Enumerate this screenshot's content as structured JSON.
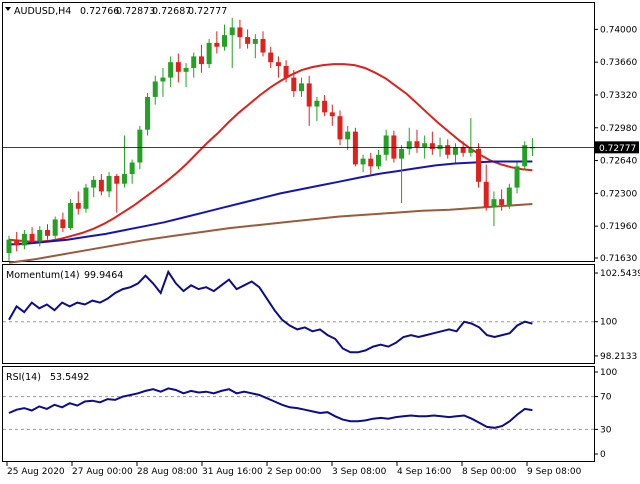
{
  "header": {
    "arrow_icon": "triangle-down-icon",
    "title": "AUDUSD,H4",
    "open": "0.72766",
    "high": "0.72873",
    "low": "0.72687",
    "close": "0.72777"
  },
  "colors": {
    "bull": "#23a123",
    "bear": "#e0201c",
    "sma_fast": "#e0201c",
    "sma_mid": "#1515b5",
    "sma_slow": "#9b5a3a",
    "indicator": "#0d0d8a",
    "price_tag_bg": "#000000"
  },
  "chart_data": [
    {
      "type": "candlestick",
      "title": "AUDUSD,H4",
      "ylim": [
        0.7163,
        0.7418
      ],
      "y_ticks": [
        "0.74000",
        "0.73660",
        "0.73320",
        "0.72980",
        "0.72640",
        "0.72300",
        "0.71960",
        "0.71630"
      ],
      "current_price": "0.72777",
      "x_ticks": [
        "25 Aug 2020",
        "27 Aug 00:00",
        "28 Aug 08:00",
        "31 Aug 16:00",
        "2 Sep 00:00",
        "3 Sep 08:00",
        "4 Sep 16:00",
        "8 Sep 00:00",
        "9 Sep 08:00"
      ],
      "candles": [
        [
          0.7168,
          0.7186,
          0.716,
          0.7182
        ],
        [
          0.7182,
          0.719,
          0.717,
          0.7176
        ],
        [
          0.7176,
          0.7192,
          0.7172,
          0.7188
        ],
        [
          0.7188,
          0.7195,
          0.7178,
          0.718
        ],
        [
          0.718,
          0.7196,
          0.7175,
          0.7192
        ],
        [
          0.7192,
          0.7198,
          0.7182,
          0.7186
        ],
        [
          0.7186,
          0.7206,
          0.7183,
          0.7203
        ],
        [
          0.7203,
          0.721,
          0.719,
          0.7194
        ],
        [
          0.7194,
          0.7224,
          0.7192,
          0.722
        ],
        [
          0.722,
          0.7232,
          0.7208,
          0.7214
        ],
        [
          0.7214,
          0.724,
          0.721,
          0.7236
        ],
        [
          0.7236,
          0.7248,
          0.7226,
          0.7244
        ],
        [
          0.7244,
          0.725,
          0.7228,
          0.7232
        ],
        [
          0.7232,
          0.7252,
          0.7226,
          0.7248
        ],
        [
          0.7248,
          0.725,
          0.721,
          0.724
        ],
        [
          0.724,
          0.729,
          0.7236,
          0.725
        ],
        [
          0.725,
          0.7265,
          0.724,
          0.7262
        ],
        [
          0.7262,
          0.73,
          0.7255,
          0.7296
        ],
        [
          0.7296,
          0.7334,
          0.729,
          0.733
        ],
        [
          0.733,
          0.7352,
          0.7322,
          0.7346
        ],
        [
          0.7346,
          0.736,
          0.733,
          0.735
        ],
        [
          0.735,
          0.7372,
          0.734,
          0.7366
        ],
        [
          0.7366,
          0.7375,
          0.7345,
          0.7356
        ],
        [
          0.7356,
          0.7365,
          0.734,
          0.736
        ],
        [
          0.736,
          0.7376,
          0.735,
          0.7372
        ],
        [
          0.7372,
          0.7384,
          0.7355,
          0.7364
        ],
        [
          0.7364,
          0.739,
          0.736,
          0.7386
        ],
        [
          0.7386,
          0.7398,
          0.7375,
          0.7382
        ],
        [
          0.7382,
          0.7405,
          0.7378,
          0.7394
        ],
        [
          0.7394,
          0.7412,
          0.736,
          0.7402
        ],
        [
          0.7402,
          0.741,
          0.738,
          0.7392
        ],
        [
          0.7392,
          0.74,
          0.738,
          0.7385
        ],
        [
          0.7385,
          0.7395,
          0.737,
          0.739
        ],
        [
          0.739,
          0.7398,
          0.7372,
          0.7376
        ],
        [
          0.7376,
          0.7382,
          0.736,
          0.7366
        ],
        [
          0.7366,
          0.7372,
          0.735,
          0.7362
        ],
        [
          0.7362,
          0.7368,
          0.7345,
          0.735
        ],
        [
          0.735,
          0.7358,
          0.733,
          0.7336
        ],
        [
          0.7336,
          0.735,
          0.733,
          0.7344
        ],
        [
          0.7344,
          0.7352,
          0.73,
          0.732
        ],
        [
          0.732,
          0.733,
          0.7305,
          0.7326
        ],
        [
          0.7326,
          0.7332,
          0.731,
          0.7314
        ],
        [
          0.7314,
          0.7322,
          0.73,
          0.731
        ],
        [
          0.731,
          0.7316,
          0.728,
          0.7286
        ],
        [
          0.7286,
          0.73,
          0.7275,
          0.7294
        ],
        [
          0.7294,
          0.7298,
          0.7258,
          0.726
        ],
        [
          0.726,
          0.727,
          0.7252,
          0.7266
        ],
        [
          0.7266,
          0.7272,
          0.725,
          0.7258
        ],
        [
          0.7258,
          0.7275,
          0.7255,
          0.727
        ],
        [
          0.727,
          0.7296,
          0.7264,
          0.729
        ],
        [
          0.729,
          0.7295,
          0.7262,
          0.7266
        ],
        [
          0.7266,
          0.728,
          0.722,
          0.7276
        ],
        [
          0.7276,
          0.7298,
          0.727,
          0.7284
        ],
        [
          0.7284,
          0.7296,
          0.7272,
          0.7278
        ],
        [
          0.7278,
          0.729,
          0.7266,
          0.7282
        ],
        [
          0.7282,
          0.7294,
          0.727,
          0.7276
        ],
        [
          0.7276,
          0.7288,
          0.7268,
          0.728
        ],
        [
          0.728,
          0.7286,
          0.7266,
          0.727
        ],
        [
          0.727,
          0.7282,
          0.7262,
          0.7278
        ],
        [
          0.7278,
          0.7284,
          0.7268,
          0.7272
        ],
        [
          0.7272,
          0.7308,
          0.7268,
          0.7276
        ],
        [
          0.7276,
          0.7282,
          0.7236,
          0.7242
        ],
        [
          0.7242,
          0.726,
          0.7212,
          0.7216
        ],
        [
          0.7216,
          0.7232,
          0.7196,
          0.7224
        ],
        [
          0.7224,
          0.7234,
          0.7212,
          0.7218
        ],
        [
          0.7218,
          0.724,
          0.7214,
          0.7236
        ],
        [
          0.7236,
          0.7262,
          0.723,
          0.7258
        ],
        [
          0.7258,
          0.7284,
          0.7254,
          0.728
        ],
        [
          0.72766,
          0.72873,
          0.72687,
          0.72777
        ]
      ],
      "series": [
        {
          "values": [
            0.7182,
            0.7181,
            0.718,
            0.718,
            0.7181,
            0.7183,
            0.7186,
            0.7189,
            0.7193,
            0.7198,
            0.7204,
            0.7211,
            0.7218,
            0.7226,
            0.7234,
            0.7242,
            0.7251,
            0.7261,
            0.7272,
            0.7283,
            0.7293,
            0.7304,
            0.7314,
            0.7323,
            0.7332,
            0.734,
            0.7347,
            0.7353,
            0.7358,
            0.7361,
            0.7363,
            0.7364,
            0.7364,
            0.7363,
            0.736,
            0.7355,
            0.7349,
            0.7341,
            0.7333,
            0.7323,
            0.7313,
            0.7303,
            0.7294,
            0.7285,
            0.7277,
            0.727,
            0.7264,
            0.726,
            0.7257,
            0.7255,
            0.7254
          ]
        },
        {
          "values": [
            0.7177,
            0.7178,
            0.718,
            0.7182,
            0.7185,
            0.7188,
            0.7192,
            0.7196,
            0.72,
            0.7205,
            0.721,
            0.7215,
            0.722,
            0.7225,
            0.723,
            0.7234,
            0.7238,
            0.7242,
            0.7246,
            0.725,
            0.7253,
            0.7256,
            0.7259,
            0.7261,
            0.7262,
            0.7263,
            0.7263,
            0.7263
          ]
        },
        {
          "values": [
            0.7158,
            0.7162,
            0.7167,
            0.7172,
            0.7177,
            0.7182,
            0.7186,
            0.719,
            0.7194,
            0.7197,
            0.72,
            0.7203,
            0.7206,
            0.7208,
            0.721,
            0.7212,
            0.7213,
            0.7215,
            0.7217,
            0.7219
          ]
        }
      ]
    },
    {
      "type": "line",
      "title": "Momentum(14)",
      "current_value": "99.9464",
      "ylim": [
        98.0,
        102.7
      ],
      "y_ticks": [
        "102.5439",
        "100",
        "98.2133"
      ],
      "level": 100,
      "series": [
        {
          "name": "Momentum(14)",
          "values": [
            100.1,
            100.8,
            100.5,
            101.0,
            100.7,
            100.9,
            100.6,
            101.0,
            100.8,
            101.0,
            100.9,
            101.1,
            101.0,
            101.2,
            101.5,
            101.7,
            101.8,
            102.0,
            102.4,
            102.0,
            101.5,
            102.6,
            102.0,
            101.6,
            101.9,
            101.7,
            101.8,
            101.6,
            101.9,
            102.2,
            101.7,
            101.9,
            102.1,
            101.8,
            101.2,
            100.6,
            100.1,
            99.8,
            99.6,
            99.7,
            99.5,
            99.6,
            99.3,
            99.1,
            98.6,
            98.4,
            98.4,
            98.5,
            98.7,
            98.8,
            98.7,
            98.9,
            99.2,
            99.3,
            99.2,
            99.3,
            99.4,
            99.5,
            99.6,
            99.5,
            100.0,
            99.9,
            99.7,
            99.3,
            99.2,
            99.3,
            99.4,
            99.8,
            100.0,
            99.9
          ]
        }
      ]
    },
    {
      "type": "line",
      "title": "RSI(14)",
      "current_value": "53.5492",
      "ylim": [
        0,
        100
      ],
      "y_ticks": [
        "100",
        "70",
        "30",
        "0"
      ],
      "levels": [
        70,
        30
      ],
      "series": [
        {
          "name": "RSI(14)",
          "values": [
            50,
            54,
            56,
            53,
            58,
            55,
            60,
            57,
            62,
            59,
            64,
            65,
            63,
            67,
            66,
            70,
            72,
            74,
            77,
            79,
            76,
            80,
            78,
            74,
            77,
            75,
            76,
            74,
            77,
            79,
            74,
            76,
            74,
            72,
            68,
            64,
            60,
            57,
            56,
            54,
            52,
            50,
            51,
            46,
            42,
            40,
            40,
            41,
            43,
            44,
            43,
            45,
            46,
            47,
            46,
            46,
            47,
            46,
            45,
            46,
            47,
            43,
            38,
            33,
            32,
            34,
            40,
            48,
            55,
            53.5
          ]
        }
      ]
    }
  ]
}
